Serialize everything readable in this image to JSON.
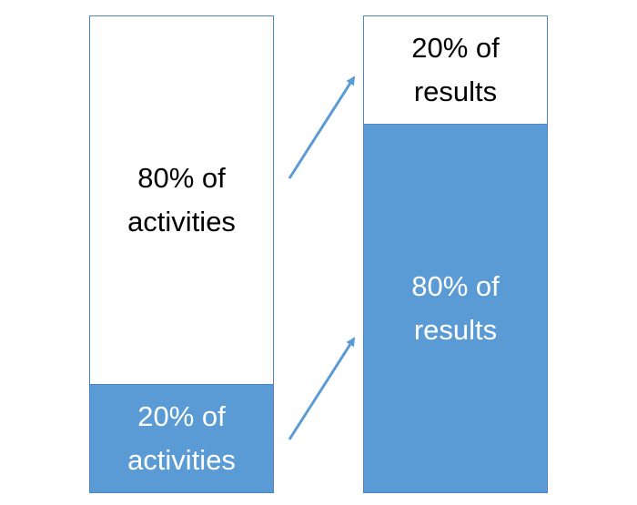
{
  "diagram": {
    "left_bar": {
      "top_label": "80% of\nactivities",
      "bottom_label": "20% of\nactivities"
    },
    "right_bar": {
      "top_label": "20% of\nresults",
      "bottom_label": "80% of\nresults"
    },
    "colors": {
      "accent_fill": "#5b9bd5",
      "border": "#4f86bf",
      "arrow": "#5b9bd5",
      "light_text": "#000000",
      "dark_text": "#ffffff"
    }
  }
}
